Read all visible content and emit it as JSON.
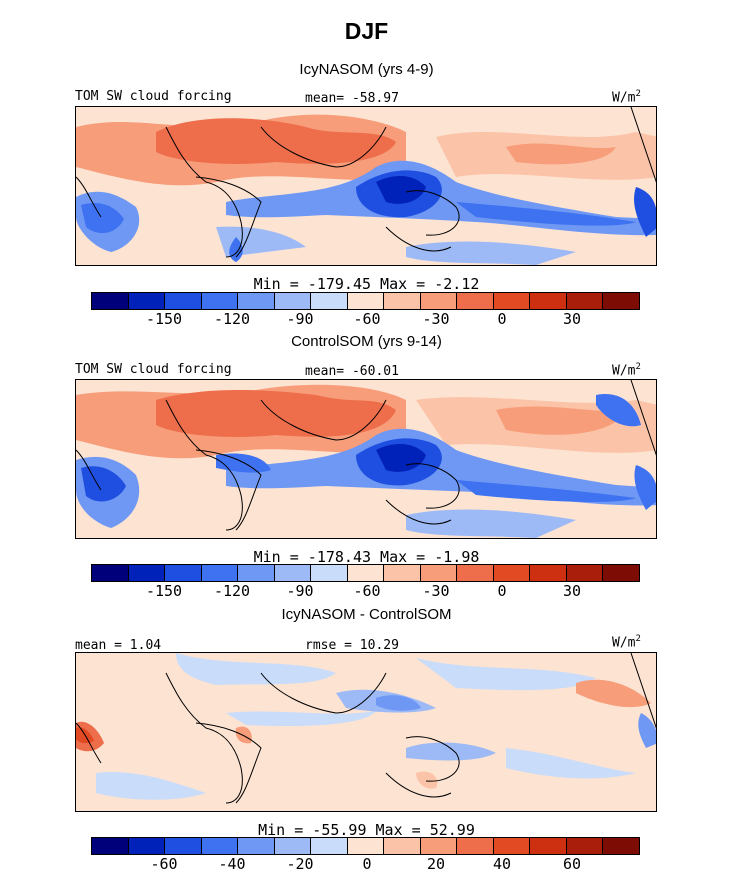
{
  "figure": {
    "title": "DJF"
  },
  "panels": [
    {
      "title": "IcyNASOM (yrs 4-9)",
      "left_label": "TOM SW cloud forcing",
      "center_label": "mean=  -58.97",
      "unit": "W/m",
      "unit_sup": "2",
      "stats": "Min = -179.45 Max =  -2.12",
      "colorbar_ticks": [
        "-150",
        "-120",
        "-90",
        "-60",
        "-30",
        "0",
        "30"
      ]
    },
    {
      "title": "ControlSOM (yrs 9-14)",
      "left_label": "TOM SW cloud forcing",
      "center_label": "mean=  -60.01",
      "unit": "W/m",
      "unit_sup": "2",
      "stats": "Min = -178.43 Max =  -1.98",
      "colorbar_ticks": [
        "-150",
        "-120",
        "-90",
        "-60",
        "-30",
        "0",
        "30"
      ]
    },
    {
      "title": "IcyNASOM - ControlSOM",
      "left_label": "mean =   1.04",
      "center_label": "rmse =  10.29",
      "unit": "W/m",
      "unit_sup": "2",
      "stats": "Min = -55.99 Max =  52.99",
      "colorbar_ticks": [
        "-60",
        "-40",
        "-20",
        "0",
        "20",
        "40",
        "60"
      ]
    }
  ],
  "colors": {
    "palette": [
      "#00007a",
      "#0022b8",
      "#1f4fe0",
      "#3e72f0",
      "#6e98f4",
      "#9dbaf6",
      "#c9dcfa",
      "#fde3d2",
      "#fbc4a8",
      "#f79d7a",
      "#ee6e4c",
      "#e24a24",
      "#cc3010",
      "#a81e0a",
      "#7c0c04"
    ]
  }
}
